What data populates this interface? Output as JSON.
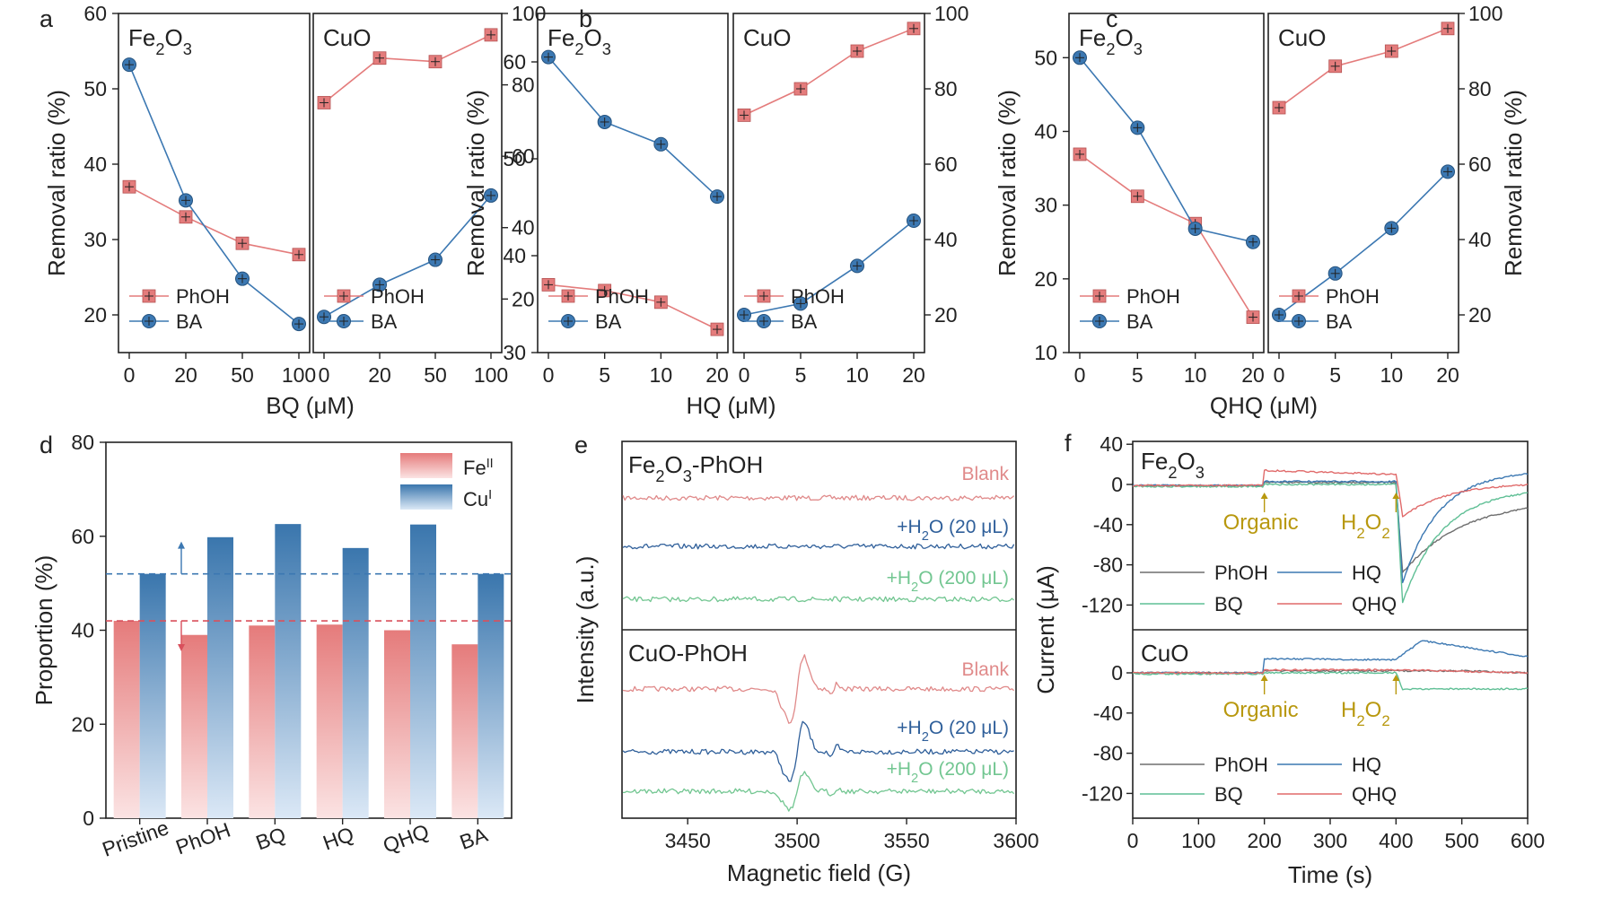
{
  "colors": {
    "red": "#e47c7c",
    "blue": "#3c78b2",
    "green": "#6fc28e",
    "gray": "#6e6e6e",
    "tealGreen": "#5fbf95",
    "gold": "#b8980e",
    "eprRed": "#e08a8a",
    "eprBlue": "#2f5f9a",
    "eprGreen": "#72c691"
  },
  "chart_data": [
    {
      "id": "a",
      "panel_label": "a",
      "type": "line",
      "xlabel_main": "BQ",
      "xlabel_unit": "(μM)",
      "left_ylabel": "Removal ratio (%)",
      "right_ylabel": "",
      "left_yticks": [
        "20",
        "30",
        "40",
        "50",
        "60"
      ],
      "right_yticks": [
        "20",
        "40",
        "60",
        "80",
        "100"
      ],
      "left_ylim": [
        15,
        60
      ],
      "right_ylim": [
        5,
        100
      ],
      "subplots": [
        {
          "title_base": "Fe",
          "title_sub1": "2",
          "title_mid": "O",
          "title_sub2": "3",
          "categories": [
            "0",
            "20",
            "50",
            "100"
          ],
          "axis": "left",
          "series": [
            {
              "name": "PhOH",
              "marker": "square",
              "values": [
                37,
                33,
                29.5,
                28
              ]
            },
            {
              "name": "BA",
              "marker": "circle",
              "values": [
                53.2,
                35.2,
                24.8,
                18.8
              ]
            }
          ]
        },
        {
          "title_base": "CuO",
          "title_sub1": "",
          "title_mid": "",
          "title_sub2": "",
          "categories": [
            "0",
            "20",
            "50",
            "100"
          ],
          "axis": "right",
          "series": [
            {
              "name": "PhOH",
              "marker": "square",
              "values": [
                75,
                87.5,
                86.5,
                94
              ]
            },
            {
              "name": "BA",
              "marker": "circle",
              "values": [
                15,
                24,
                31,
                49
              ]
            }
          ]
        }
      ]
    },
    {
      "id": "b",
      "panel_label": "b",
      "type": "line",
      "xlabel_main": "HQ",
      "xlabel_unit": "(μM)",
      "left_ylabel": "Removal ratio (%)",
      "right_ylabel": "",
      "left_yticks": [
        "30",
        "40",
        "50",
        "60"
      ],
      "right_yticks": [
        "20",
        "40",
        "60",
        "80",
        "100"
      ],
      "left_ylim": [
        30,
        65
      ],
      "right_ylim": [
        10,
        100
      ],
      "subplots": [
        {
          "title_base": "Fe",
          "title_sub1": "2",
          "title_mid": "O",
          "title_sub2": "3",
          "categories": [
            "0",
            "5",
            "10",
            "20"
          ],
          "axis": "left",
          "series": [
            {
              "name": "PhOH",
              "marker": "square",
              "values": [
                37,
                36.4,
                35.2,
                32.4
              ]
            },
            {
              "name": "BA",
              "marker": "circle",
              "values": [
                60.5,
                53.8,
                51.5,
                46.1
              ]
            }
          ]
        },
        {
          "title_base": "CuO",
          "title_sub1": "",
          "title_mid": "",
          "title_sub2": "",
          "categories": [
            "0",
            "5",
            "10",
            "20"
          ],
          "axis": "right",
          "series": [
            {
              "name": "PhOH",
              "marker": "square",
              "values": [
                73,
                80,
                90,
                96
              ]
            },
            {
              "name": "BA",
              "marker": "circle",
              "values": [
                20,
                23,
                33,
                45
              ]
            }
          ]
        }
      ]
    },
    {
      "id": "c",
      "panel_label": "c",
      "type": "line",
      "xlabel_main": "QHQ",
      "xlabel_unit": "(μM)",
      "left_ylabel": "Removal ratio (%)",
      "right_ylabel": "Removal ratio (%)",
      "left_yticks": [
        "10",
        "20",
        "30",
        "40",
        "50"
      ],
      "right_yticks": [
        "20",
        "40",
        "60",
        "80",
        "100"
      ],
      "left_ylim": [
        10,
        56
      ],
      "right_ylim": [
        10,
        100
      ],
      "subplots": [
        {
          "title_base": "Fe",
          "title_sub1": "2",
          "title_mid": "O",
          "title_sub2": "3",
          "categories": [
            "0",
            "5",
            "10",
            "20"
          ],
          "axis": "left",
          "series": [
            {
              "name": "PhOH",
              "marker": "square",
              "values": [
                36.9,
                31.2,
                27.5,
                14.8
              ]
            },
            {
              "name": "BA",
              "marker": "circle",
              "values": [
                50,
                40.5,
                26.8,
                25
              ]
            }
          ]
        },
        {
          "title_base": "CuO",
          "title_sub1": "",
          "title_mid": "",
          "title_sub2": "",
          "categories": [
            "0",
            "5",
            "10",
            "20"
          ],
          "axis": "right",
          "series": [
            {
              "name": "PhOH",
              "marker": "square",
              "values": [
                75,
                86,
                90,
                96
              ]
            },
            {
              "name": "BA",
              "marker": "circle",
              "values": [
                20,
                31,
                43,
                58
              ]
            }
          ]
        }
      ]
    },
    {
      "id": "d",
      "panel_label": "d",
      "type": "bar",
      "ylabel": "Proportion (%)",
      "ylim": [
        0,
        80
      ],
      "yticks": [
        "0",
        "20",
        "40",
        "60",
        "80"
      ],
      "categories": [
        "Pristine",
        "PhOH",
        "BQ",
        "HQ",
        "QHQ",
        "BA"
      ],
      "series": [
        {
          "name_base": "Fe",
          "name_sup": "II",
          "values": [
            42,
            39,
            41,
            41.2,
            40,
            37
          ]
        },
        {
          "name_base": "Cu",
          "name_sup": "I",
          "values": [
            52,
            59.8,
            62.6,
            57.5,
            62.5,
            52
          ]
        }
      ],
      "reference_lines": [
        52,
        42
      ]
    },
    {
      "id": "e",
      "panel_label": "e",
      "type": "line",
      "xlabel": "Magnetic field (G)",
      "ylabel": "Intensity (a.u.)",
      "xlim": [
        3420,
        3600
      ],
      "xticks": [
        "3450",
        "3500",
        "3550",
        "3600"
      ],
      "top_title_base": "Fe",
      "top_title_sub1": "2",
      "top_title_mid": "O",
      "top_title_sub2": "3",
      "top_title_end": "-PhOH",
      "bottom_title": "CuO-PhOH",
      "traces": [
        {
          "label": "Blank",
          "label_prefix": "",
          "label_sub": "",
          "label_suffix": ""
        },
        {
          "label": "",
          "label_prefix": "+H",
          "label_sub": "2",
          "label_suffix": "O (20 μL)"
        },
        {
          "label": "",
          "label_prefix": "+H",
          "label_sub": "2",
          "label_suffix": "O (200 μL)"
        }
      ]
    },
    {
      "id": "f",
      "panel_label": "f",
      "type": "line",
      "xlabel": "Time (s)",
      "ylabel": "Current (μA)",
      "xlim": [
        0,
        600
      ],
      "xticks": [
        "0",
        "100",
        "200",
        "300",
        "400",
        "500",
        "600"
      ],
      "top_yticks": [
        "40",
        "0",
        "-40",
        "-80",
        "-120"
      ],
      "bottom_yticks": [
        "40",
        "0",
        "-40",
        "-80",
        "-120"
      ],
      "top_title_base": "Fe",
      "top_title_sub1": "2",
      "top_title_mid": "O",
      "top_title_sub2": "3",
      "bottom_title": "CuO",
      "series_names": [
        "PhOH",
        "HQ",
        "BQ",
        "QHQ"
      ],
      "annotation_organic": "Organic",
      "annotation_h2o2_base": "H",
      "annotation_h2o2_sub1": "2",
      "annotation_h2o2_mid": "O",
      "annotation_h2o2_sub2": "2",
      "events_s": [
        200,
        400
      ]
    }
  ]
}
